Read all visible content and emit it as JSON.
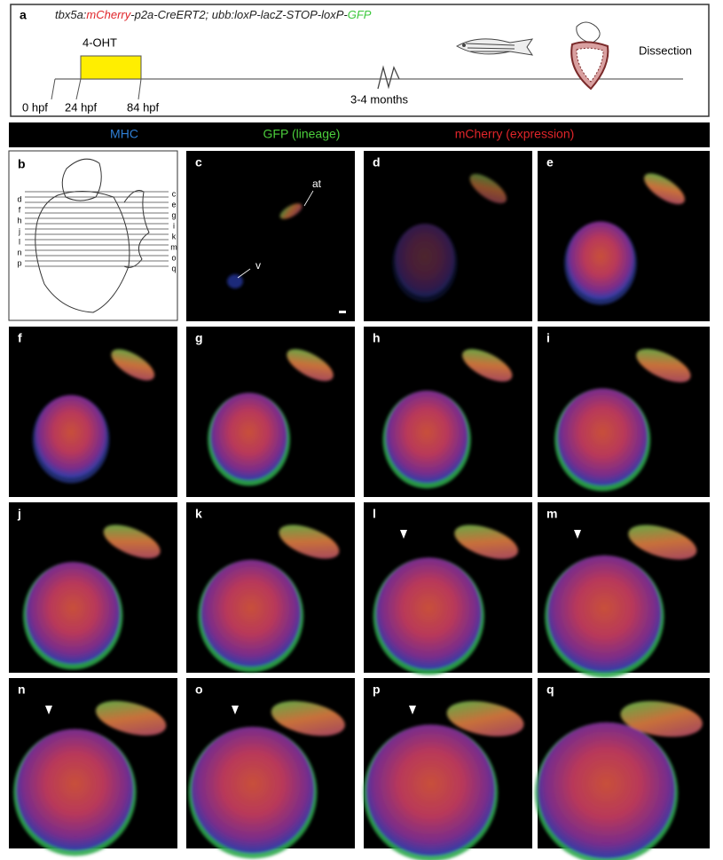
{
  "panel_a": {
    "label": "a",
    "title_segments": [
      {
        "text": "tbx5a:",
        "color": "#222222"
      },
      {
        "text": "mCherry",
        "color": "#e0252a"
      },
      {
        "text": "-p2a-CreERT2; ubb:loxP-lacZ-STOP-loxP-",
        "color": "#222222"
      },
      {
        "text": "GFP",
        "color": "#3cc83c"
      }
    ],
    "treatment": "4-OHT",
    "timepoints": [
      "0 hpf",
      "24 hpf",
      "84 hpf"
    ],
    "later_time": "3-4 months",
    "endpoint": "Dissection"
  },
  "legend": [
    {
      "text": "MHC",
      "color": "#2f7fd6"
    },
    {
      "text": "GFP (lineage)",
      "color": "#4ccf3c"
    },
    {
      "text": "mCherry (expression)",
      "color": "#e0252a"
    }
  ],
  "panel_b": {
    "label": "b",
    "left_labels": [
      "d",
      "f",
      "h",
      "j",
      "l",
      "n",
      "p"
    ],
    "right_labels": [
      "c",
      "e",
      "g",
      "i",
      "k",
      "m",
      "o",
      "q"
    ]
  },
  "panels": [
    {
      "label": "c",
      "annotations": [
        "at",
        "v"
      ]
    },
    {
      "label": "d"
    },
    {
      "label": "e"
    },
    {
      "label": "f"
    },
    {
      "label": "g"
    },
    {
      "label": "h"
    },
    {
      "label": "i"
    },
    {
      "label": "j"
    },
    {
      "label": "k"
    },
    {
      "label": "l"
    },
    {
      "label": "m"
    },
    {
      "label": "n"
    },
    {
      "label": "o"
    },
    {
      "label": "p"
    },
    {
      "label": "q"
    }
  ]
}
